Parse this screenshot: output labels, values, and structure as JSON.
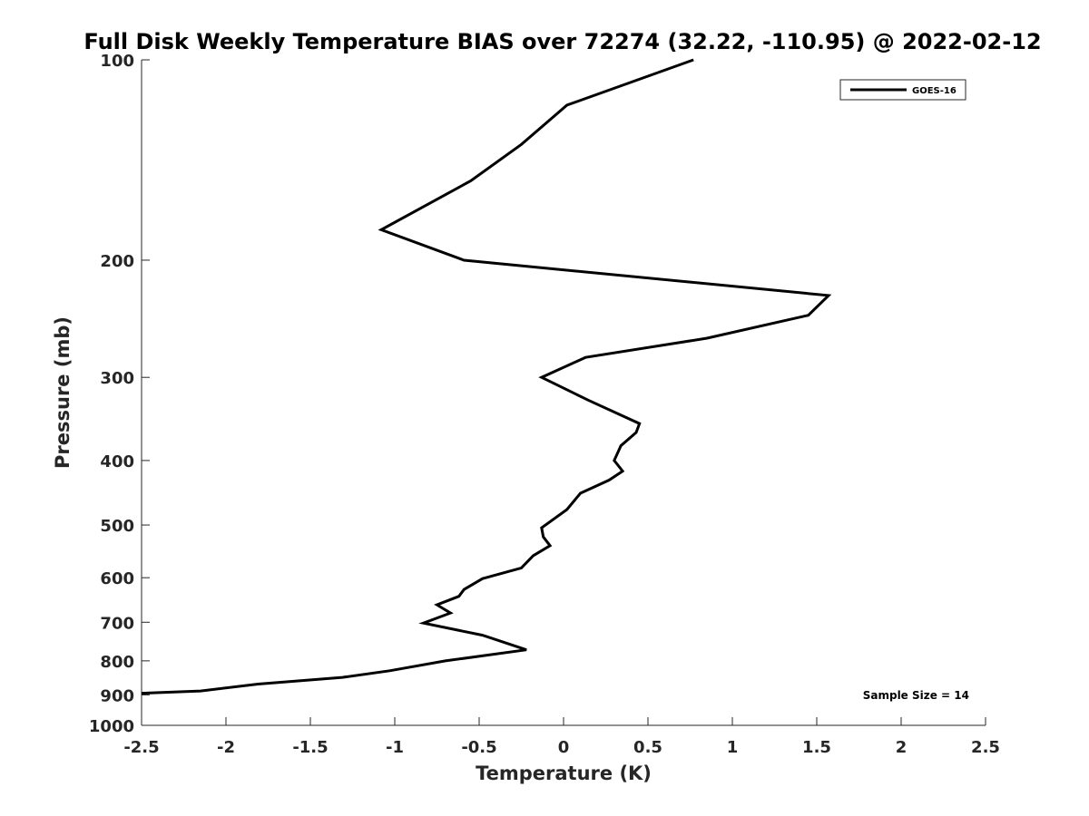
{
  "chart_data": {
    "type": "line",
    "title": "Full Disk Weekly Temperature BIAS over 72274 (32.22, -110.95) @ 2022-02-12",
    "xlabel": "Temperature (K)",
    "ylabel": "Pressure (mb)",
    "xlim": [
      -2.5,
      2.5
    ],
    "ylim": [
      1000,
      100
    ],
    "yscale": "log",
    "yreversed": true,
    "grid": false,
    "legend_position": "top-right",
    "x_ticks": [
      {
        "value": -2.5,
        "label": "-2.5"
      },
      {
        "value": -2,
        "label": "-2"
      },
      {
        "value": -1.5,
        "label": "-1.5"
      },
      {
        "value": -1,
        "label": "-1"
      },
      {
        "value": -0.5,
        "label": "-0.5"
      },
      {
        "value": 0,
        "label": "0"
      },
      {
        "value": 0.5,
        "label": "0.5"
      },
      {
        "value": 1,
        "label": "1"
      },
      {
        "value": 1.5,
        "label": "1.5"
      },
      {
        "value": 2,
        "label": "2"
      },
      {
        "value": 2.5,
        "label": "2.5"
      }
    ],
    "y_ticks": [
      {
        "value": 100,
        "label": "100"
      },
      {
        "value": 200,
        "label": "200"
      },
      {
        "value": 300,
        "label": "300"
      },
      {
        "value": 400,
        "label": "400"
      },
      {
        "value": 500,
        "label": "500"
      },
      {
        "value": 600,
        "label": "600"
      },
      {
        "value": 700,
        "label": "700"
      },
      {
        "value": 800,
        "label": "800"
      },
      {
        "value": 900,
        "label": "900"
      },
      {
        "value": 1000,
        "label": "1000"
      }
    ],
    "series": [
      {
        "name": "GOES-16",
        "color": "#000000",
        "x": [
          0.77,
          0.02,
          -0.25,
          -0.55,
          -1.08,
          -0.59,
          1.57,
          1.45,
          0.85,
          0.13,
          -0.13,
          0.15,
          0.45,
          0.43,
          0.34,
          0.3,
          0.35,
          0.27,
          0.1,
          0.02,
          -0.13,
          -0.12,
          -0.08,
          -0.18,
          -0.25,
          -0.48,
          -0.59,
          -0.62,
          -0.75,
          -0.67,
          -0.83,
          -0.48,
          -0.22,
          -0.7,
          -1.03,
          -1.31,
          -1.81,
          -2.15,
          -2.5
        ],
        "y": [
          100,
          117,
          134,
          152,
          180,
          200,
          226,
          242,
          262,
          280,
          300,
          325,
          352,
          363,
          380,
          400,
          415,
          428,
          448,
          474,
          505,
          521,
          537,
          556,
          580,
          602,
          625,
          640,
          659,
          678,
          702,
          732,
          770,
          800,
          828,
          847,
          867,
          888,
          895
        ]
      }
    ],
    "legend": [
      "GOES-16"
    ],
    "annotations": [
      "Sample Size = 14"
    ]
  }
}
